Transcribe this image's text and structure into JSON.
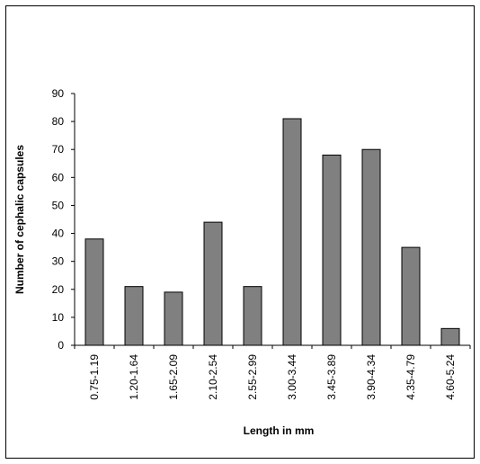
{
  "chart_data": {
    "type": "bar",
    "categories": [
      "0.75-1.19",
      "1.20-1.64",
      "1.65-2.09",
      "2.10-2.54",
      "2.55-2.99",
      "3.00-3.44",
      "3.45-3.89",
      "3.90-4.34",
      "4.35-4.79",
      "4.60-5.24"
    ],
    "values": [
      38,
      21,
      19,
      44,
      21,
      81,
      68,
      70,
      35,
      6
    ],
    "title": "",
    "xlabel": "Length in mm",
    "ylabel": "Number of cephalic capsules",
    "ylim": [
      0,
      90
    ],
    "yticks": [
      0,
      10,
      20,
      30,
      40,
      50,
      60,
      70,
      80,
      90
    ],
    "grid": false,
    "legend": "none",
    "bar_color": "#808080",
    "bar_edge_color": "#000000"
  }
}
